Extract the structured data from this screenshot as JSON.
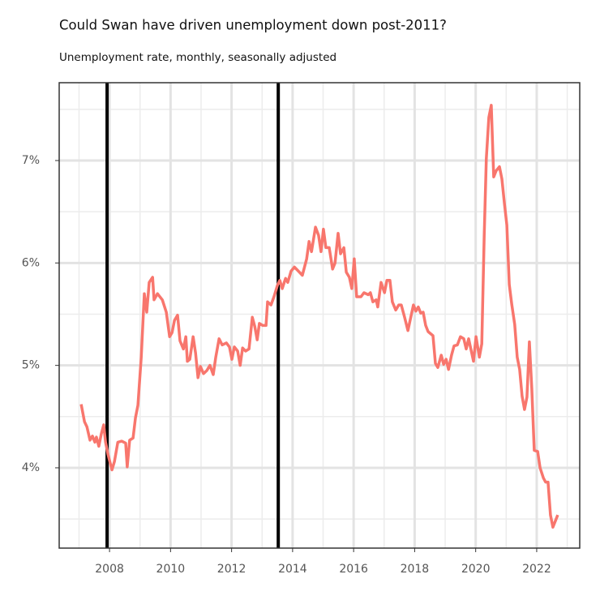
{
  "chart_data": {
    "type": "line",
    "title": "Could Swan have driven unemployment down post-2011?",
    "subtitle": "Unemployment rate, monthly, seasonally adjusted",
    "color": "#f8766d",
    "x": [
      2007.07,
      2007.18,
      2007.26,
      2007.36,
      2007.44,
      2007.52,
      2007.57,
      2007.65,
      2007.73,
      2007.81,
      2007.87,
      2007.95,
      2008.08,
      2008.16,
      2008.27,
      2008.4,
      2008.53,
      2008.58,
      2008.66,
      2008.77,
      2008.85,
      2008.93,
      2009.04,
      2009.14,
      2009.22,
      2009.3,
      2009.41,
      2009.46,
      2009.57,
      2009.73,
      2009.86,
      2009.97,
      2010.05,
      2010.13,
      2010.23,
      2010.31,
      2010.42,
      2010.5,
      2010.55,
      2010.63,
      2010.74,
      2010.82,
      2010.9,
      2010.98,
      2011.08,
      2011.19,
      2011.29,
      2011.4,
      2011.48,
      2011.59,
      2011.69,
      2011.83,
      2011.93,
      2012.01,
      2012.09,
      2012.2,
      2012.28,
      2012.36,
      2012.46,
      2012.57,
      2012.68,
      2012.76,
      2012.84,
      2012.91,
      2013.02,
      2013.13,
      2013.18,
      2013.29,
      2013.39,
      2013.5,
      2013.58,
      2013.66,
      2013.77,
      2013.84,
      2013.95,
      2014.06,
      2014.19,
      2014.32,
      2014.46,
      2014.54,
      2014.62,
      2014.75,
      2014.85,
      2014.93,
      2015.01,
      2015.09,
      2015.2,
      2015.31,
      2015.39,
      2015.49,
      2015.57,
      2015.68,
      2015.76,
      2015.86,
      2015.94,
      2016.02,
      2016.1,
      2016.24,
      2016.34,
      2016.48,
      2016.55,
      2016.63,
      2016.74,
      2016.79,
      2016.9,
      2017.01,
      2017.09,
      2017.19,
      2017.27,
      2017.38,
      2017.48,
      2017.56,
      2017.67,
      2017.78,
      2017.86,
      2017.96,
      2018.04,
      2018.12,
      2018.2,
      2018.28,
      2018.36,
      2018.44,
      2018.6,
      2018.68,
      2018.76,
      2018.87,
      2018.95,
      2019.03,
      2019.11,
      2019.21,
      2019.29,
      2019.4,
      2019.5,
      2019.61,
      2019.69,
      2019.77,
      2019.85,
      2019.93,
      2020.01,
      2020.12,
      2020.2,
      2020.28,
      2020.35,
      2020.43,
      2020.51,
      2020.59,
      2020.67,
      2020.78,
      2020.86,
      2020.94,
      2021.02,
      2021.1,
      2021.18,
      2021.28,
      2021.36,
      2021.44,
      2021.52,
      2021.6,
      2021.68,
      2021.76,
      2021.84,
      2021.92,
      2022.03,
      2022.11,
      2022.22,
      2022.29,
      2022.37,
      2022.45,
      2022.53,
      2022.61,
      2022.69
    ],
    "values": [
      4.62,
      4.45,
      4.4,
      4.27,
      4.31,
      4.25,
      4.3,
      4.21,
      4.33,
      4.42,
      4.25,
      4.13,
      3.98,
      4.06,
      4.25,
      4.26,
      4.24,
      4.01,
      4.27,
      4.29,
      4.49,
      4.61,
      5.08,
      5.7,
      5.52,
      5.81,
      5.86,
      5.64,
      5.7,
      5.64,
      5.52,
      5.28,
      5.32,
      5.44,
      5.49,
      5.24,
      5.16,
      5.28,
      5.04,
      5.06,
      5.28,
      5.12,
      4.88,
      4.99,
      4.92,
      4.95,
      5.0,
      4.91,
      5.08,
      5.26,
      5.2,
      5.22,
      5.18,
      5.06,
      5.18,
      5.14,
      5.0,
      5.17,
      5.14,
      5.16,
      5.47,
      5.38,
      5.25,
      5.41,
      5.39,
      5.39,
      5.62,
      5.59,
      5.67,
      5.78,
      5.83,
      5.75,
      5.85,
      5.81,
      5.92,
      5.96,
      5.92,
      5.88,
      6.04,
      6.21,
      6.11,
      6.35,
      6.27,
      6.11,
      6.33,
      6.15,
      6.15,
      5.94,
      6.0,
      6.29,
      6.09,
      6.15,
      5.91,
      5.86,
      5.75,
      6.04,
      5.67,
      5.67,
      5.71,
      5.69,
      5.71,
      5.62,
      5.64,
      5.57,
      5.81,
      5.71,
      5.83,
      5.83,
      5.62,
      5.54,
      5.59,
      5.59,
      5.47,
      5.34,
      5.45,
      5.59,
      5.53,
      5.57,
      5.51,
      5.52,
      5.39,
      5.33,
      5.29,
      5.02,
      4.98,
      5.1,
      5.01,
      5.06,
      4.96,
      5.1,
      5.19,
      5.2,
      5.28,
      5.26,
      5.16,
      5.26,
      5.15,
      5.04,
      5.28,
      5.08,
      5.21,
      6.27,
      7.02,
      7.42,
      7.54,
      6.84,
      6.9,
      6.94,
      6.82,
      6.59,
      6.37,
      5.79,
      5.6,
      5.4,
      5.08,
      4.96,
      4.7,
      4.57,
      4.69,
      5.23,
      4.77,
      4.17,
      4.16,
      4.0,
      3.9,
      3.86,
      3.86,
      3.54,
      3.42,
      3.48,
      3.54
    ],
    "vlines": [
      2007.92,
      2013.53
    ],
    "vline_color": "#000000",
    "xlim": [
      2006.35,
      2023.41
    ],
    "ylim": [
      3.216,
      7.76
    ],
    "xticks": [
      2008,
      2010,
      2012,
      2014,
      2016,
      2018,
      2020,
      2022
    ],
    "yticks": [
      {
        "value": 4,
        "label": "4%"
      },
      {
        "value": 5,
        "label": "5%"
      },
      {
        "value": 6,
        "label": "6%"
      },
      {
        "value": 7,
        "label": "7%"
      }
    ],
    "minor_xticks": [
      2007,
      2009,
      2011,
      2013,
      2015,
      2017,
      2019,
      2021,
      2023
    ],
    "minor_yticks": [
      3.5,
      4.5,
      5.5,
      6.5,
      7.5
    ],
    "grid": true
  }
}
